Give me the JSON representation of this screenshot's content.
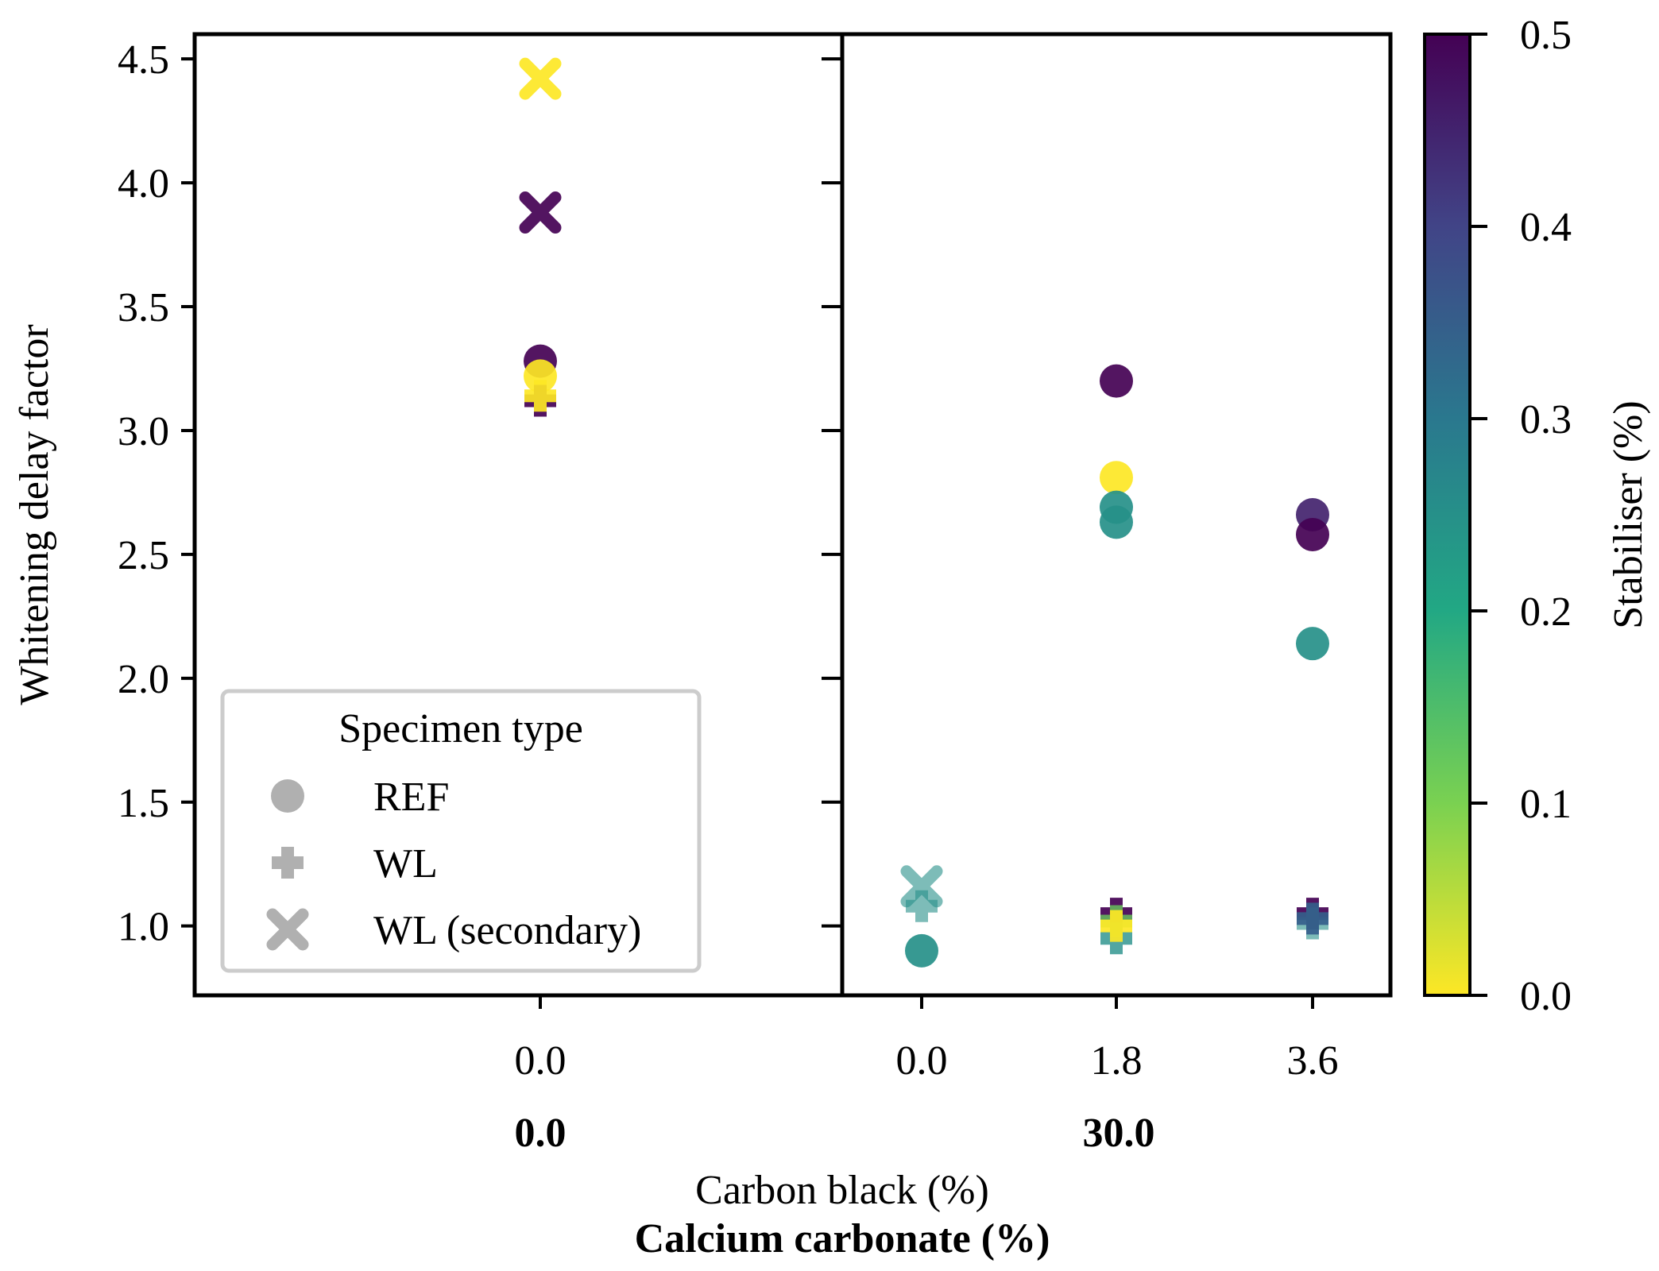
{
  "chart_data": {
    "type": "scatter",
    "y_label": "Whitening delay factor",
    "x_label_inner": "Carbon black (%)",
    "x_label_outer": "Calcium carbonate (%)",
    "y_range": [
      0.72,
      4.6
    ],
    "y_ticks": [
      "1.0",
      "1.5",
      "2.0",
      "2.5",
      "3.0",
      "3.5",
      "4.0",
      "4.5"
    ],
    "panels": [
      {
        "group_label": "0.0",
        "x_categories": [
          "0.0"
        ],
        "points": [
          {
            "cat": "0.0",
            "y": 4.42,
            "marker": "x",
            "stabiliser": 0.0
          },
          {
            "cat": "0.0",
            "y": 3.88,
            "marker": "x",
            "stabiliser": 0.5
          },
          {
            "cat": "0.0",
            "y": 3.28,
            "marker": "circle",
            "stabiliser": 0.5
          },
          {
            "cat": "0.0",
            "y": 3.22,
            "marker": "circle",
            "stabiliser": 0.0
          },
          {
            "cat": "0.0",
            "y": 3.12,
            "marker": "plus",
            "stabiliser": 0.5
          },
          {
            "cat": "0.0",
            "y": 3.14,
            "marker": "plus",
            "stabiliser": 0.0
          }
        ]
      },
      {
        "group_label": "30.0",
        "x_categories": [
          "0.0",
          "1.8",
          "3.6"
        ],
        "points": [
          {
            "cat": "0.0",
            "y": 1.16,
            "marker": "x",
            "stabiliser": 0.25,
            "alpha": 0.6
          },
          {
            "cat": "0.0",
            "y": 1.08,
            "marker": "plus",
            "stabiliser": 0.25,
            "alpha": 0.6
          },
          {
            "cat": "0.0",
            "y": 0.9,
            "marker": "circle",
            "stabiliser": 0.25
          },
          {
            "cat": "1.8",
            "y": 3.2,
            "marker": "circle",
            "stabiliser": 0.5
          },
          {
            "cat": "1.8",
            "y": 2.81,
            "marker": "circle",
            "stabiliser": 0.0
          },
          {
            "cat": "1.8",
            "y": 2.69,
            "marker": "circle",
            "stabiliser": 0.25
          },
          {
            "cat": "1.8",
            "y": 2.63,
            "marker": "circle",
            "stabiliser": 0.25
          },
          {
            "cat": "1.8",
            "y": 1.05,
            "marker": "plus",
            "stabiliser": 0.5
          },
          {
            "cat": "1.8",
            "y": 0.95,
            "marker": "plus",
            "stabiliser": 0.25,
            "alpha": 0.8
          },
          {
            "cat": "1.8",
            "y": 1.02,
            "marker": "plus",
            "stabiliser": 0.12,
            "alpha": 0.8
          },
          {
            "cat": "1.8",
            "y": 1.0,
            "marker": "plus",
            "stabiliser": 0.0
          },
          {
            "cat": "3.6",
            "y": 2.66,
            "marker": "circle",
            "stabiliser": 0.45
          },
          {
            "cat": "3.6",
            "y": 2.58,
            "marker": "circle",
            "stabiliser": 0.5
          },
          {
            "cat": "3.6",
            "y": 2.14,
            "marker": "circle",
            "stabiliser": 0.25
          },
          {
            "cat": "3.6",
            "y": 1.05,
            "marker": "plus",
            "stabiliser": 0.5
          },
          {
            "cat": "3.6",
            "y": 1.01,
            "marker": "plus",
            "stabiliser": 0.25,
            "alpha": 0.6
          },
          {
            "cat": "3.6",
            "y": 1.03,
            "marker": "plus",
            "stabiliser": 0.35
          }
        ]
      }
    ],
    "legend": {
      "title": "Specimen type",
      "position": "lower-left",
      "entries": [
        {
          "label": "REF",
          "marker": "circle"
        },
        {
          "label": "WL",
          "marker": "plus"
        },
        {
          "label": "WL (secondary)",
          "marker": "x"
        }
      ]
    },
    "colorbar": {
      "label": "Stabiliser (%)",
      "colormap": "viridis (reversed)",
      "range": [
        0.0,
        0.5
      ],
      "ticks": [
        "0.0",
        "0.1",
        "0.2",
        "0.3",
        "0.4",
        "0.5"
      ]
    }
  }
}
